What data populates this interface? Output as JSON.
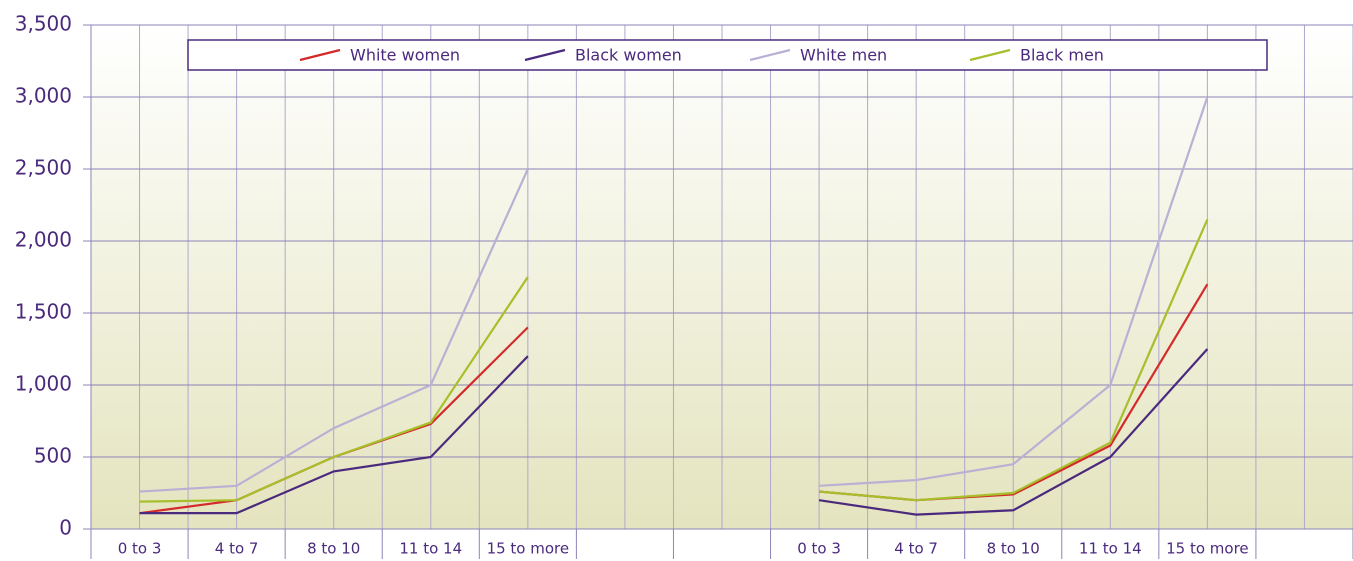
{
  "chart_data": {
    "type": "line",
    "categories": [
      "0 to 3",
      "4 to 7",
      "8 to 10",
      "11 to 14",
      "15 to more",
      null,
      null,
      "0 to 3",
      "4 to 7",
      "8 to 10",
      "11 to 14",
      "15 to more",
      null
    ],
    "series": [
      {
        "name": "White women",
        "color": "#d42a2a",
        "values": [
          110,
          200,
          500,
          730,
          1400,
          null,
          null,
          260,
          200,
          240,
          580,
          1700,
          null
        ]
      },
      {
        "name": "Black women",
        "color": "#4b2a7d",
        "values": [
          110,
          110,
          400,
          500,
          1200,
          null,
          null,
          200,
          100,
          130,
          500,
          1250,
          null
        ]
      },
      {
        "name": "White men",
        "color": "#b9b0d4",
        "values": [
          260,
          300,
          700,
          1000,
          2500,
          null,
          null,
          300,
          340,
          450,
          1000,
          3000,
          null
        ]
      },
      {
        "name": "Black men",
        "color": "#a7bf2a",
        "values": [
          190,
          200,
          500,
          740,
          1750,
          null,
          null,
          260,
          200,
          250,
          600,
          2150,
          null
        ]
      }
    ],
    "ylim": [
      0,
      3500
    ],
    "yticks": [
      0,
      500,
      {
        "value": 1000,
        "label": "1,000"
      },
      {
        "value": 1500,
        "label": "1,500"
      },
      {
        "value": 2000,
        "label": "2,000"
      },
      {
        "value": 2500,
        "label": "2,500"
      },
      {
        "value": 3000,
        "label": "3,000"
      },
      {
        "value": 3500,
        "label": "3,500"
      }
    ],
    "grid": true,
    "legend": "top"
  }
}
